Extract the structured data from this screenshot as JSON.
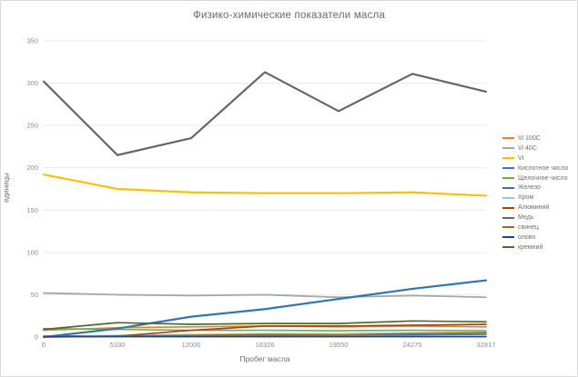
{
  "window": {
    "background": "#ffffff",
    "border_color": "#d9d9d9"
  },
  "colors": {
    "title_text": "#6a6a6a",
    "tick_text": "#8c8c8c",
    "axis_title_text": "#6f6f6f",
    "gridline": "#e9e9e9",
    "axis_line": "#c9c9c9"
  },
  "chart_data": {
    "type": "line",
    "title": "Физико-химические показатели масла",
    "xlabel": "Пробег масла",
    "ylabel": "единицы",
    "ylim": [
      0,
      350
    ],
    "ytick_step": 50,
    "grid": true,
    "legend_position": "right",
    "categories": [
      "0",
      "5330",
      "12000",
      "16326",
      "19550",
      "24275",
      "32817"
    ],
    "series": [
      {
        "name": "Vi 100C",
        "color": "#ED7D31",
        "width": 1.7,
        "values": [
          8,
          11,
          12,
          13,
          12,
          13,
          12
        ]
      },
      {
        "name": "Vi 40C",
        "color": "#A6A6A6",
        "width": 1.8,
        "values": [
          52,
          50,
          49,
          50,
          47,
          49,
          47
        ]
      },
      {
        "name": "VI",
        "color": "#FFC000",
        "width": 2.2,
        "values": [
          192,
          175,
          171,
          170,
          170,
          171,
          167
        ]
      },
      {
        "name": "Кислотное число",
        "color": "#4472C4",
        "width": 1.6,
        "values": [
          1,
          1.5,
          2,
          2,
          2.2,
          2.5,
          3
        ]
      },
      {
        "name": "Щелочное число",
        "color": "#70AD47",
        "width": 1.6,
        "values": [
          10,
          9,
          8,
          8,
          7.5,
          8,
          7.5
        ]
      },
      {
        "name": "Железо",
        "color": "#2E75B6",
        "width": 2.2,
        "values": [
          0,
          10,
          24,
          33,
          45,
          57,
          67
        ]
      },
      {
        "name": "Хром",
        "color": "#9DC3E6",
        "width": 1.6,
        "values": [
          0,
          2,
          3,
          4,
          4,
          5,
          6
        ]
      },
      {
        "name": "Алюминий",
        "color": "#9E480E",
        "width": 1.7,
        "values": [
          0,
          1,
          8,
          13,
          13,
          14,
          15
        ]
      },
      {
        "name": "Медь",
        "color": "#666666",
        "width": 2.2,
        "values": [
          302,
          215,
          235,
          313,
          267,
          311,
          290
        ]
      },
      {
        "name": "свинец",
        "color": "#997300",
        "width": 1.6,
        "values": [
          0.5,
          1,
          2,
          3,
          2.5,
          4,
          5
        ]
      },
      {
        "name": "олово",
        "color": "#264478",
        "width": 1.6,
        "values": [
          0.5,
          0.5,
          0.5,
          0.5,
          0.5,
          0.5,
          0.5
        ]
      },
      {
        "name": "кремний",
        "color": "#4D6B2C",
        "width": 1.7,
        "values": [
          9,
          17,
          15,
          16,
          16,
          19,
          18
        ]
      }
    ]
  }
}
